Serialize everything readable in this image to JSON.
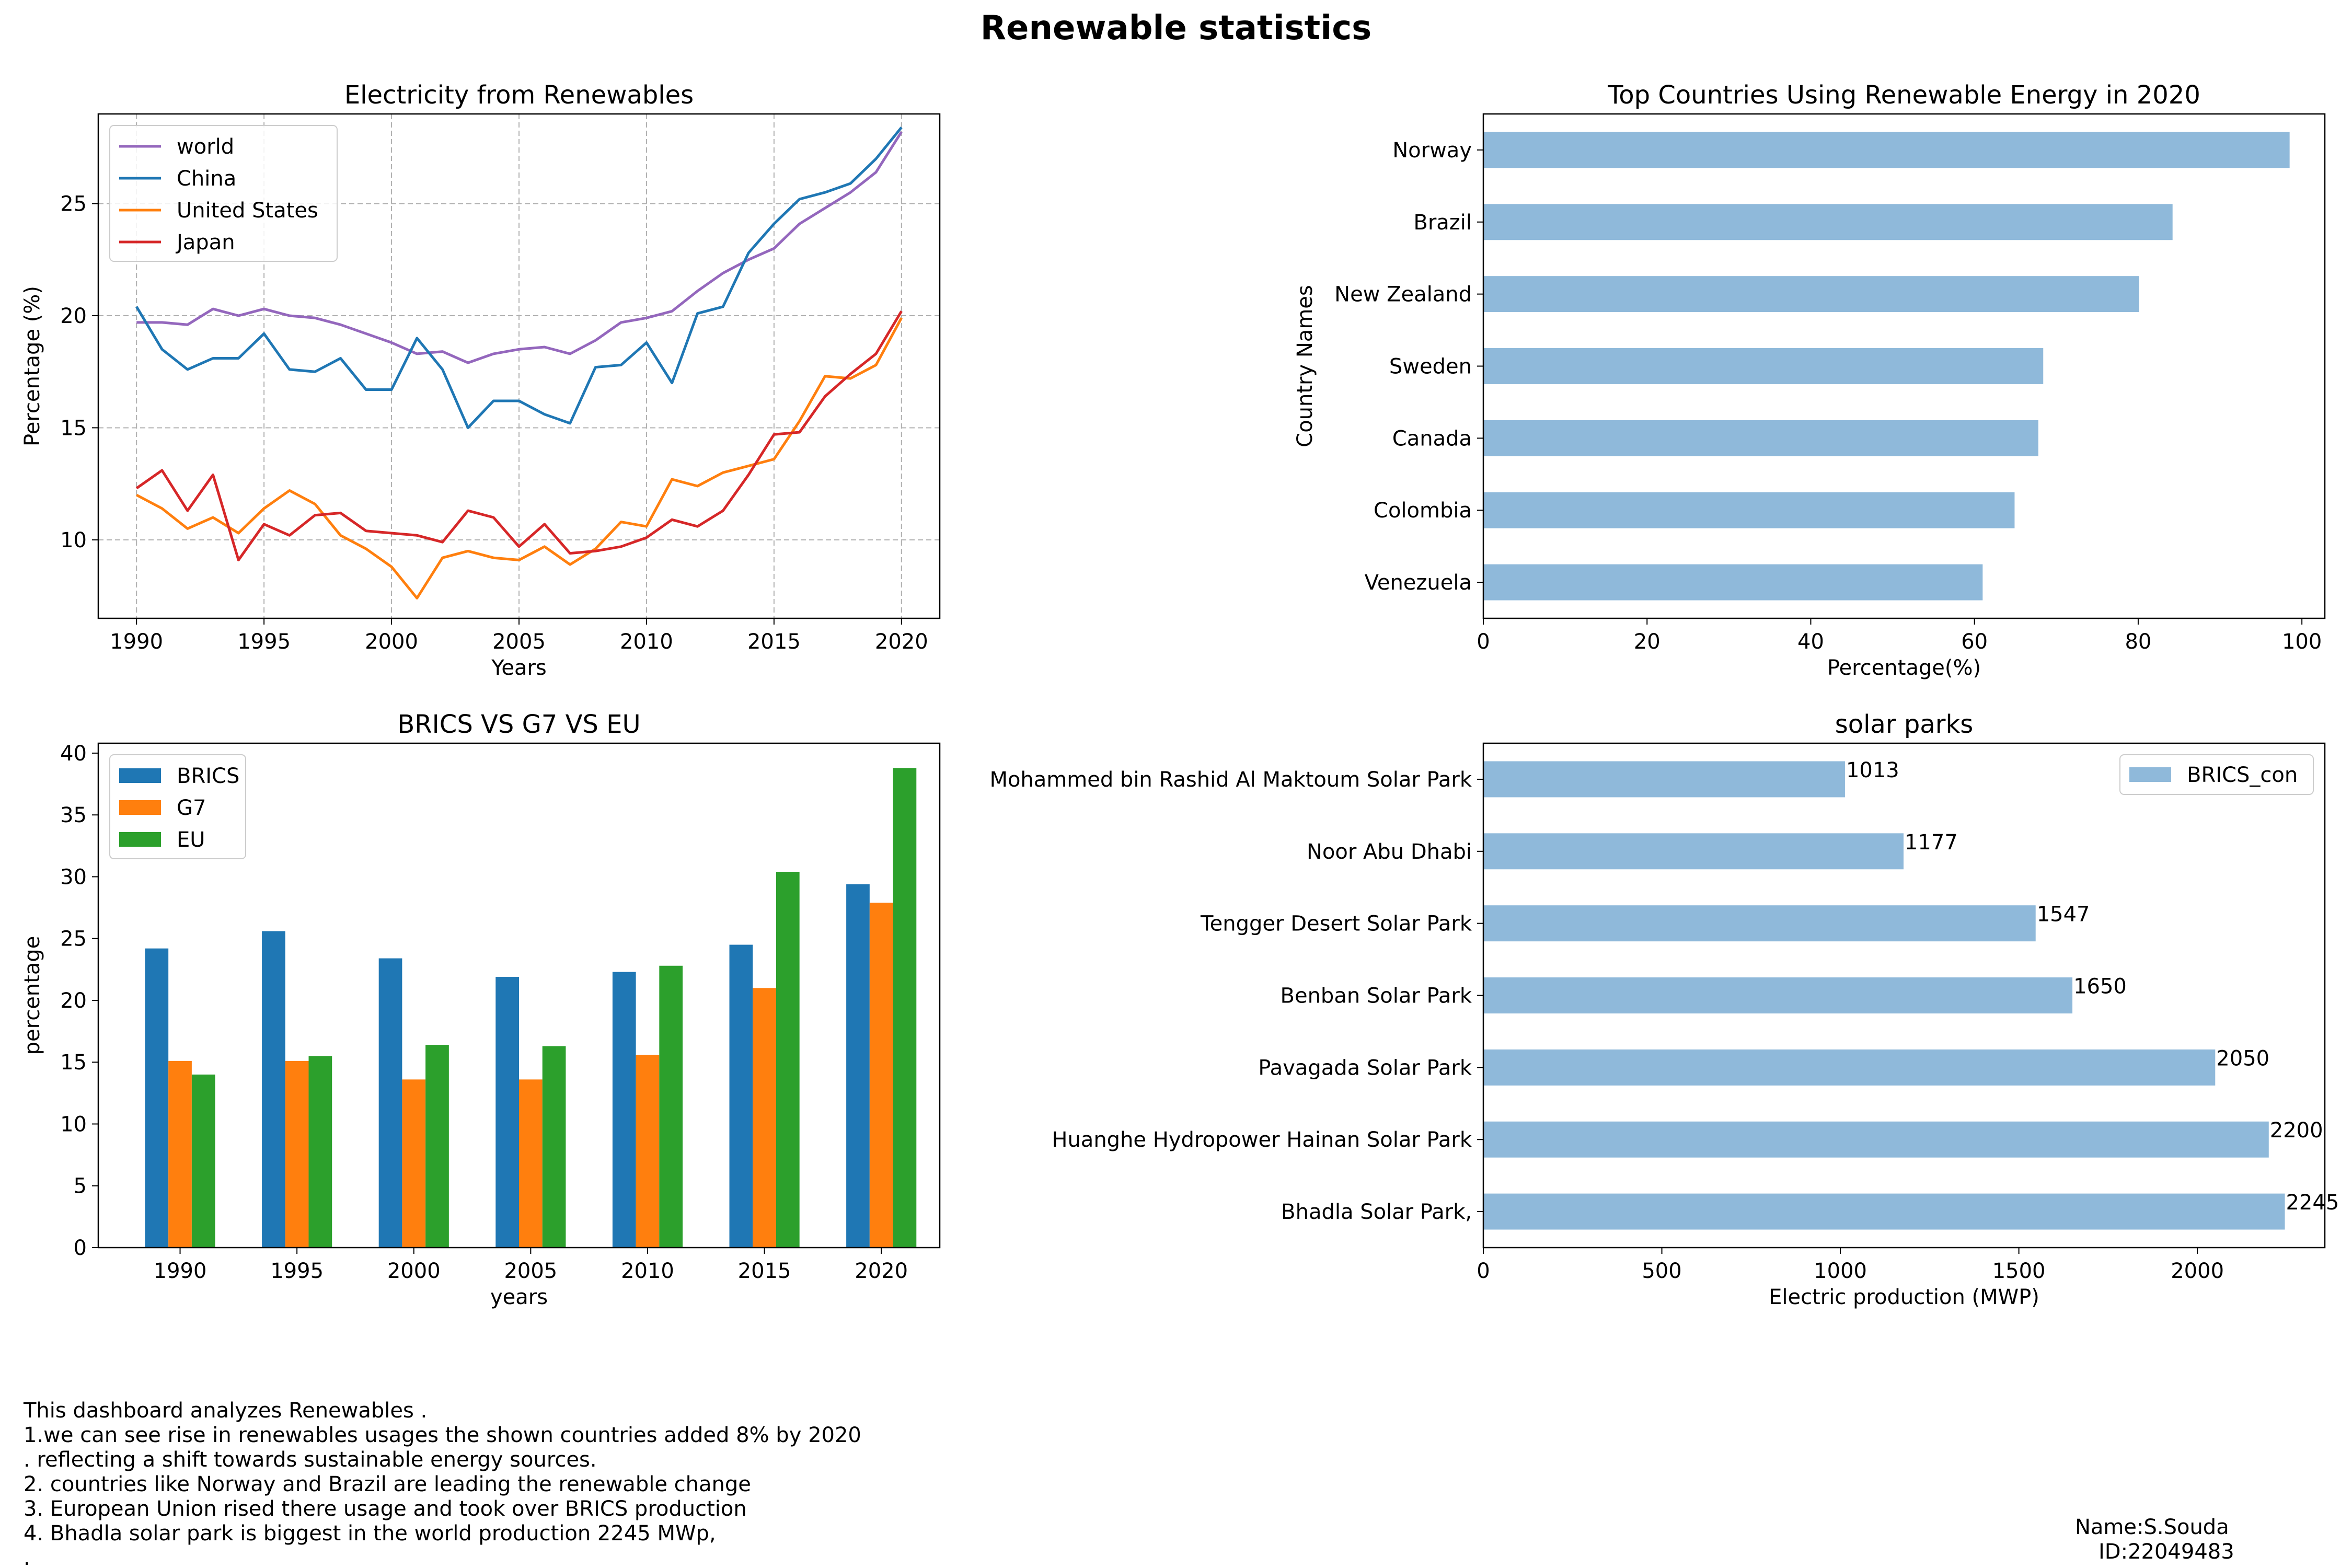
{
  "figure": {
    "title": "Renewable statistics",
    "notes": [
      "This dashboard analyzes Renewables .",
      "  1.we can see rise in renewables usages the shown countries added 8% by 2020",
      ".    reflecting a shift towards sustainable energy sources.",
      "  2. countries like Norway and Brazil are leading the renewable change",
      "  3.  European Union rised there usage and took over BRICS production",
      "  4. Bhadla solar park is biggest in the world production 2245 MWp,",
      "     ."
    ],
    "name_line": "Name:S.Souda",
    "id_line": "ID:22049483"
  },
  "chart_data": [
    {
      "type": "line",
      "title": "Electricity from Renewables",
      "xlabel": "Years",
      "ylabel": "Percentage (%)",
      "xlim": [
        1988.5,
        2021.5
      ],
      "ylim": [
        6.5,
        29.0
      ],
      "xticks": [
        1990,
        1995,
        2000,
        2005,
        2010,
        2015,
        2020
      ],
      "yticks": [
        10,
        15,
        20,
        25
      ],
      "grid": true,
      "legend": "top-left",
      "x": [
        1990,
        1991,
        1992,
        1993,
        1994,
        1995,
        1996,
        1997,
        1998,
        1999,
        2000,
        2001,
        2002,
        2003,
        2004,
        2005,
        2006,
        2007,
        2008,
        2009,
        2010,
        2011,
        2012,
        2013,
        2014,
        2015,
        2016,
        2017,
        2018,
        2019,
        2020
      ],
      "series": [
        {
          "name": "world",
          "color": "#9467bd",
          "values": [
            19.7,
            19.7,
            19.6,
            20.3,
            20.0,
            20.3,
            20.0,
            19.9,
            19.6,
            19.2,
            18.8,
            18.3,
            18.4,
            17.9,
            18.3,
            18.5,
            18.6,
            18.3,
            18.9,
            19.7,
            19.9,
            20.2,
            21.1,
            21.9,
            22.5,
            23.0,
            24.1,
            24.8,
            25.5,
            26.4,
            28.2
          ]
        },
        {
          "name": "China",
          "color": "#1f77b4",
          "values": [
            20.4,
            18.5,
            17.6,
            18.1,
            18.1,
            19.2,
            17.6,
            17.5,
            18.1,
            16.7,
            16.7,
            19.0,
            17.6,
            15.0,
            16.2,
            16.2,
            15.6,
            15.2,
            17.7,
            17.8,
            18.8,
            17.0,
            20.1,
            20.4,
            22.8,
            24.1,
            25.2,
            25.5,
            25.9,
            27.0,
            28.4
          ]
        },
        {
          "name": "United States",
          "color": "#ff7f0e",
          "values": [
            12.0,
            11.4,
            10.5,
            11.0,
            10.3,
            11.4,
            12.2,
            11.6,
            10.2,
            9.6,
            8.8,
            7.4,
            9.2,
            9.5,
            9.2,
            9.1,
            9.7,
            8.9,
            9.6,
            10.8,
            10.6,
            12.7,
            12.4,
            13.0,
            13.3,
            13.6,
            15.3,
            17.3,
            17.2,
            17.8,
            19.9
          ]
        },
        {
          "name": "Japan",
          "color": "#d62728",
          "values": [
            12.3,
            13.1,
            11.3,
            12.9,
            9.1,
            10.7,
            10.2,
            11.1,
            11.2,
            10.4,
            10.3,
            10.2,
            9.9,
            11.3,
            11.0,
            9.7,
            10.7,
            9.4,
            9.5,
            9.7,
            10.1,
            10.9,
            10.6,
            11.3,
            12.9,
            14.7,
            14.8,
            16.4,
            17.4,
            18.3,
            20.2
          ]
        }
      ]
    },
    {
      "type": "bar",
      "orientation": "horizontal",
      "title": "Top Countries Using Renewable Energy in 2020",
      "xlabel": "Percentage(%)",
      "ylabel": "Country Names",
      "xlim": [
        0,
        102.8
      ],
      "xticks": [
        0,
        20,
        40,
        60,
        80,
        100
      ],
      "color": "#8fb9da",
      "categories": [
        "Norway",
        "Brazil",
        "New Zealand",
        "Sweden",
        "Canada",
        "Colombia",
        "Venezuela"
      ],
      "values": [
        98.5,
        84.2,
        80.1,
        68.4,
        67.8,
        64.9,
        61.0
      ]
    },
    {
      "type": "bar",
      "title": "BRICS VS G7 VS EU",
      "xlabel": "years",
      "ylabel": "percentage",
      "ylim": [
        0,
        40.8
      ],
      "yticks": [
        0,
        5,
        10,
        15,
        20,
        25,
        30,
        35,
        40
      ],
      "legend": "top-left",
      "categories": [
        "1990",
        "1995",
        "2000",
        "2005",
        "2010",
        "2015",
        "2020"
      ],
      "series": [
        {
          "name": "BRICS",
          "color": "#1f77b4",
          "values": [
            24.2,
            25.6,
            23.4,
            21.9,
            22.3,
            24.5,
            29.4
          ]
        },
        {
          "name": "G7",
          "color": "#ff7f0e",
          "values": [
            15.1,
            15.1,
            13.6,
            13.6,
            15.6,
            21.0,
            27.9
          ]
        },
        {
          "name": "EU",
          "color": "#2ca02c",
          "values": [
            14.0,
            15.5,
            16.4,
            16.3,
            22.8,
            30.4,
            38.8
          ]
        }
      ]
    },
    {
      "type": "bar",
      "orientation": "horizontal",
      "title": "solar parks",
      "xlabel": "Electric production (MWP)",
      "ylabel": "",
      "xlim": [
        0,
        2357
      ],
      "xticks": [
        0,
        500,
        1000,
        1500,
        2000
      ],
      "legend": "top-right",
      "series_name": "BRICS_con",
      "color": "#8fb9da",
      "categories": [
        "Mohammed bin Rashid Al Maktoum Solar Park",
        "Noor Abu Dhabi",
        "Tengger Desert Solar Park",
        "Benban Solar Park",
        "Pavagada Solar Park",
        "Huanghe Hydropower Hainan Solar Park",
        "Bhadla Solar Park, "
      ],
      "values": [
        1013,
        1177,
        1547,
        1650,
        2050,
        2200,
        2245
      ]
    }
  ]
}
